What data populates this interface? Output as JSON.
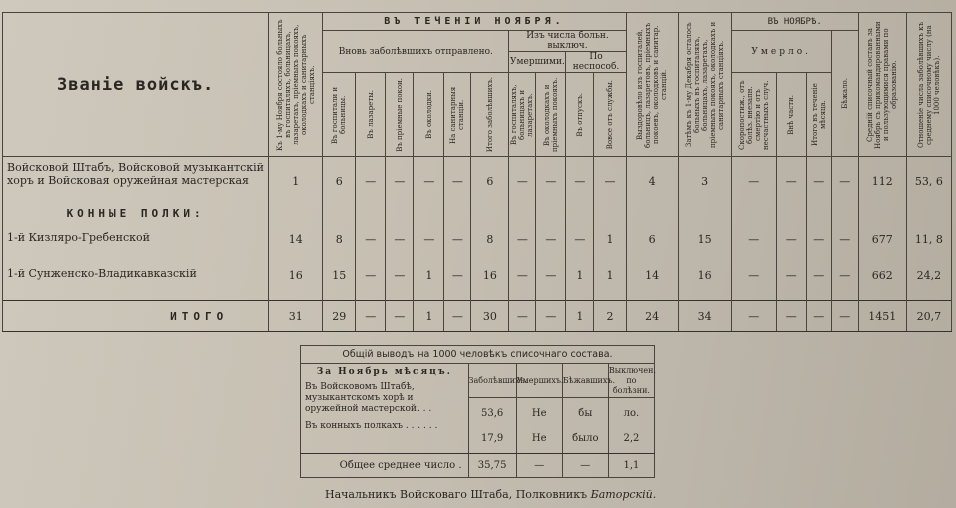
{
  "header": {
    "rank": "Званіе войскъ.",
    "start": "Къ 1-му Ноября состояло больныхъ въ госпиталяхъ, больницахъ, лазаретахъ, пріемныхъ покояхъ, околодкахъ и санитарныхъ станціяхъ.",
    "during": "ВЪ ТЕЧЕНІИ НОЯБРЯ.",
    "new_sick": "Вновь заболѣвшихъ отправлено.",
    "new_cols": [
      "Въ госпитали и больницы.",
      "Въ лазареты.",
      "Въ пріемные покои.",
      "Въ околодки.",
      "На санитарныя станціи.",
      "Итого заболѣвшихъ."
    ],
    "excluded": "Изъ числа больн. выключ.",
    "died_group": "Умершими.",
    "died_cols": [
      "Въ госпиталяхъ, больницахъ и лазаретахъ.",
      "Въ околодкахъ и пріемныхъ покояхъ."
    ],
    "unfit_group": "По неспособ.",
    "unfit_cols": [
      "Въ отпускъ.",
      "Вовсе отъ службы."
    ],
    "recovered": "Выздоровѣло изъ госпиталей, больницъ, лазаретовъ, пріемныхъ покоевъ, околодковъ и санитар. станцій.",
    "remaining": "Затѣмъ къ 1-му Декабря осталось больныхъ въ госпиталяхъ, больницахъ, лазаретахъ, пріемныхъ покояхъ, околодкахъ и санитарныхъ станціяхъ.",
    "in_november": "ВЪ НОЯБРѢ.",
    "died": "Умерло.",
    "died2_cols": [
      "Скоропостиж., отъ болѣз. внезапн. смертію и отъ несчастныхъ случ.",
      "Внѣ части.",
      "Итого въ теченіе мѣсяца."
    ],
    "fled": "Бѣжало.",
    "avg": "Средній списочный составъ за Ноябрь съ прикомандированными и пользующимися правами по образованію.",
    "ratio": "Отношеніе числа заболѣвшихъ къ среднему списочному числу (на 1000 человѣкъ)."
  },
  "rows": [
    {
      "name": "Войсковой Штабъ, Войсковой музыкантскій хоръ и Войсковая оружейная мастерская",
      "values": [
        "1",
        "6",
        "—",
        "—",
        "—",
        "—",
        "6",
        "—",
        "—",
        "—",
        "—",
        "4",
        "3",
        "—",
        "—",
        "—",
        "—",
        "112",
        "53, 6"
      ]
    },
    {
      "section": "КОННЫЕ ПОЛКИ:"
    },
    {
      "name": "1-й Кизляро-Гребенской",
      "values": [
        "14",
        "8",
        "—",
        "—",
        "—",
        "—",
        "8",
        "—",
        "—",
        "—",
        "1",
        "6",
        "15",
        "—",
        "—",
        "—",
        "—",
        "677",
        "11, 8"
      ]
    },
    {
      "name": "1-й Сунженско-Владикавказскій",
      "values": [
        "16",
        "15",
        "—",
        "—",
        "1",
        "—",
        "16",
        "—",
        "—",
        "1",
        "1",
        "14",
        "16",
        "—",
        "—",
        "—",
        "—",
        "662",
        "24,2"
      ]
    }
  ],
  "total": {
    "label": "ИТОГО",
    "values": [
      "31",
      "29",
      "—",
      "—",
      "1",
      "—",
      "30",
      "—",
      "—",
      "1",
      "2",
      "24",
      "34",
      "—",
      "—",
      "—",
      "—",
      "1451",
      "20,7"
    ]
  },
  "summary": {
    "title": "Общій выводъ на 1000 человѣкъ списочнаго состава.",
    "period": "За Ноябрь мѣсяцъ.",
    "cols": [
      "Заболѣвшихъ.",
      "Умершихъ.",
      "Бѣжавшихъ.",
      "Выключен. по болѣзни."
    ],
    "rows": [
      {
        "name": "Въ Войсковомъ Штабѣ, музыкантскомъ хорѣ и оружейной мастерской. . .",
        "values": [
          "53,6",
          "Не",
          "бы",
          "ло."
        ]
      },
      {
        "name": "Въ конныхъ полкахъ . . . . . .",
        "values": [
          "17,9",
          "Не",
          "было",
          "2,2"
        ]
      }
    ],
    "total_label": "Общее среднее число .",
    "total_values": [
      "35,75",
      "—",
      "—",
      "1,1"
    ]
  },
  "signature": {
    "text": "Начальникъ Войсковаго Штаба,  Полковникъ",
    "name": "Баторскій."
  }
}
